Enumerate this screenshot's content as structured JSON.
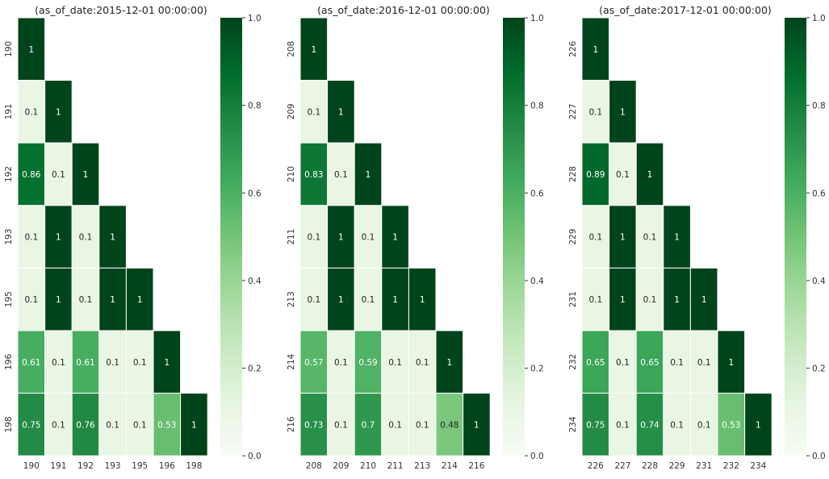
{
  "colormap": {
    "name": "Greens",
    "stops": [
      "#f7fcf5",
      "#e5f5e0",
      "#c7e9c0",
      "#a1d99b",
      "#74c476",
      "#41ab5d",
      "#238b45",
      "#006d2c",
      "#00441b"
    ]
  },
  "chart_data": [
    {
      "type": "heatmap",
      "title": "(as_of_date:2015-12-01 00:00:00)",
      "labels": [
        "190",
        "191",
        "192",
        "193",
        "195",
        "196",
        "198"
      ],
      "values": [
        [
          1
        ],
        [
          0.1,
          1
        ],
        [
          0.86,
          0.1,
          1
        ],
        [
          0.1,
          1,
          0.1,
          1
        ],
        [
          0.1,
          1,
          0.1,
          1,
          1
        ],
        [
          0.61,
          0.1,
          0.61,
          0.1,
          0.1,
          1
        ],
        [
          0.75,
          0.1,
          0.76,
          0.1,
          0.1,
          0.53,
          1
        ]
      ],
      "colorbar": {
        "range": [
          0,
          1
        ],
        "ticks": [
          "0.0",
          "0.2",
          "0.4",
          "0.6",
          "0.8",
          "1.0"
        ]
      }
    },
    {
      "type": "heatmap",
      "title": "(as_of_date:2016-12-01 00:00:00)",
      "labels": [
        "208",
        "209",
        "210",
        "211",
        "213",
        "214",
        "216"
      ],
      "values": [
        [
          1
        ],
        [
          0.1,
          1
        ],
        [
          0.83,
          0.1,
          1
        ],
        [
          0.1,
          1,
          0.1,
          1
        ],
        [
          0.1,
          1,
          0.1,
          1,
          1
        ],
        [
          0.57,
          0.1,
          0.59,
          0.1,
          0.1,
          1
        ],
        [
          0.73,
          0.1,
          0.7,
          0.1,
          0.1,
          0.48,
          1
        ]
      ],
      "colorbar": {
        "range": [
          0,
          1
        ],
        "ticks": [
          "0.0",
          "0.2",
          "0.4",
          "0.6",
          "0.8",
          "1.0"
        ]
      }
    },
    {
      "type": "heatmap",
      "title": "(as_of_date:2017-12-01 00:00:00)",
      "labels": [
        "226",
        "227",
        "228",
        "229",
        "231",
        "232",
        "234"
      ],
      "values": [
        [
          1
        ],
        [
          0.1,
          1
        ],
        [
          0.89,
          0.1,
          1
        ],
        [
          0.1,
          1,
          0.1,
          1
        ],
        [
          0.1,
          1,
          0.1,
          1,
          1
        ],
        [
          0.65,
          0.1,
          0.65,
          0.1,
          0.1,
          1
        ],
        [
          0.75,
          0.1,
          0.74,
          0.1,
          0.1,
          0.53,
          1
        ]
      ],
      "colorbar": {
        "range": [
          0,
          1
        ],
        "ticks": [
          "0.0",
          "0.2",
          "0.4",
          "0.6",
          "0.8",
          "1.0"
        ]
      }
    }
  ]
}
